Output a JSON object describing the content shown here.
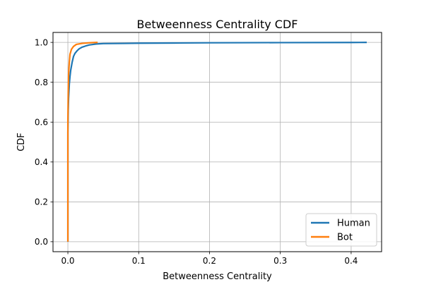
{
  "chart_data": {
    "type": "line",
    "title": "Betweenness Centrality CDF",
    "xlabel": "Betweenness Centrality",
    "ylabel": "CDF",
    "xlim": [
      -0.021,
      0.443
    ],
    "ylim": [
      -0.05,
      1.05
    ],
    "xticks": [
      0.0,
      0.1,
      0.2,
      0.3,
      0.4
    ],
    "xtick_labels": [
      "0.0",
      "0.1",
      "0.2",
      "0.3",
      "0.4"
    ],
    "yticks": [
      0.0,
      0.2,
      0.4,
      0.6,
      0.8,
      1.0
    ],
    "ytick_labels": [
      "0.0",
      "0.2",
      "0.4",
      "0.6",
      "0.8",
      "1.0"
    ],
    "grid": true,
    "legend": "lower-right",
    "series": [
      {
        "name": "Human",
        "color": "#1f77b4",
        "x": [
          0.0,
          0.0,
          0.0005,
          0.001,
          0.002,
          0.003,
          0.004,
          0.006,
          0.008,
          0.01,
          0.013,
          0.016,
          0.02,
          0.025,
          0.03,
          0.04,
          0.05,
          0.08,
          0.1,
          0.15,
          0.2,
          0.3,
          0.4,
          0.422
        ],
        "y": [
          0.0,
          0.55,
          0.66,
          0.72,
          0.79,
          0.83,
          0.86,
          0.9,
          0.93,
          0.945,
          0.958,
          0.968,
          0.976,
          0.982,
          0.987,
          0.992,
          0.994,
          0.995,
          0.996,
          0.997,
          0.998,
          0.999,
          0.9995,
          1.0
        ]
      },
      {
        "name": "Bot",
        "color": "#ff7f0e",
        "x": [
          0.0,
          0.0,
          0.0005,
          0.001,
          0.002,
          0.003,
          0.005,
          0.008,
          0.012,
          0.02,
          0.03,
          0.042
        ],
        "y": [
          0.0,
          0.6,
          0.75,
          0.84,
          0.9,
          0.94,
          0.965,
          0.98,
          0.99,
          0.995,
          0.998,
          1.0
        ]
      }
    ]
  }
}
